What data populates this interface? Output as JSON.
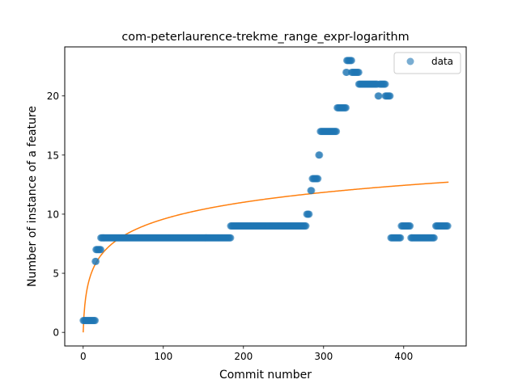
{
  "chart_data": {
    "type": "scatter",
    "title": "com-peterlaurence-trekme_range_expr-logarithm",
    "xlabel": "Commit number",
    "ylabel": "Number of instance of a feature",
    "xlim": [
      -23,
      478
    ],
    "ylim": [
      -1.15,
      24.15
    ],
    "xticks": [
      0,
      100,
      200,
      300,
      400
    ],
    "yticks": [
      0,
      5,
      10,
      15,
      20
    ],
    "xtick_labels": [
      "0",
      "100",
      "200",
      "300",
      "400"
    ],
    "ytick_labels": [
      "0",
      "5",
      "10",
      "15",
      "20"
    ],
    "grid": false,
    "legend": {
      "position": "top-right",
      "entries": [
        "data"
      ]
    },
    "colors": {
      "data": "#1f77b4",
      "fit": "#ff7f0e"
    },
    "series": [
      {
        "name": "data",
        "kind": "scatter",
        "segments": [
          {
            "x_start": 0,
            "x_end": 15,
            "y": 1
          },
          {
            "x_start": 15,
            "x_end": 16,
            "y": 6
          },
          {
            "x_start": 16,
            "x_end": 22,
            "y": 7
          },
          {
            "x_start": 22,
            "x_end": 184,
            "y": 8
          },
          {
            "x_start": 184,
            "x_end": 278,
            "y": 9
          },
          {
            "x_start": 279,
            "x_end": 282,
            "y": 10
          },
          {
            "x_start": 284,
            "x_end": 285,
            "y": 12
          },
          {
            "x_start": 286,
            "x_end": 293,
            "y": 13
          },
          {
            "x_start": 294,
            "x_end": 295,
            "y": 15
          },
          {
            "x_start": 296,
            "x_end": 316,
            "y": 17
          },
          {
            "x_start": 317,
            "x_end": 328,
            "y": 19
          },
          {
            "x_start": 328,
            "x_end": 329,
            "y": 22
          },
          {
            "x_start": 329,
            "x_end": 335,
            "y": 23
          },
          {
            "x_start": 335,
            "x_end": 344,
            "y": 22
          },
          {
            "x_start": 344,
            "x_end": 367,
            "y": 21
          },
          {
            "x_start": 368,
            "x_end": 369,
            "y": 20
          },
          {
            "x_start": 370,
            "x_end": 377,
            "y": 21
          },
          {
            "x_start": 377,
            "x_end": 383,
            "y": 20
          },
          {
            "x_start": 384,
            "x_end": 396,
            "y": 8
          },
          {
            "x_start": 397,
            "x_end": 408,
            "y": 9
          },
          {
            "x_start": 409,
            "x_end": 438,
            "y": 8
          },
          {
            "x_start": 440,
            "x_end": 455,
            "y": 9
          }
        ]
      },
      {
        "name": "",
        "kind": "line",
        "model": "logarithmic",
        "a": 2.075,
        "b": 0,
        "x_range": [
          0,
          456
        ]
      }
    ]
  }
}
